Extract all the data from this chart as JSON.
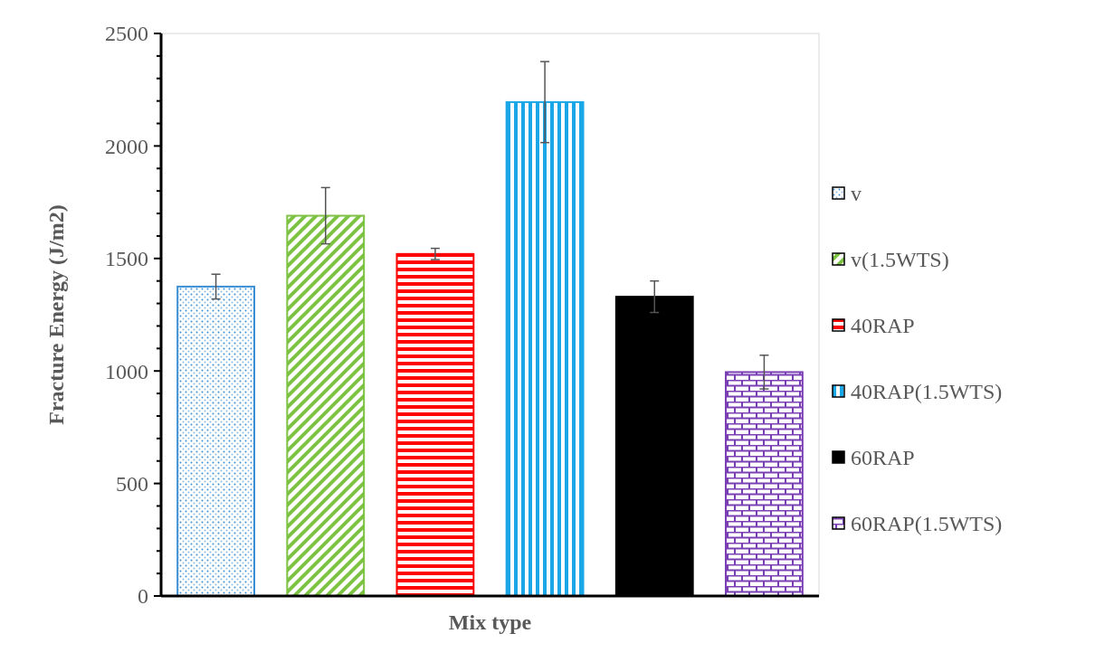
{
  "chart_data": {
    "type": "bar",
    "xlabel": "Mix type",
    "ylabel": "Fracture Energy (J/m2)",
    "categories": [
      null
    ],
    "series": [
      {
        "name": "v",
        "color": "#3b8fd4",
        "values": [
          1375
        ],
        "errors": [
          55
        ]
      },
      {
        "name": "v(1.5WTS)",
        "color": "#7dc242",
        "values": [
          1690
        ],
        "errors": [
          125
        ]
      },
      {
        "name": "40RAP",
        "color": "#ff0000",
        "values": [
          1520
        ],
        "errors": [
          25
        ]
      },
      {
        "name": "40RAP(1.5WTS)",
        "color": "#1aa7e8",
        "values": [
          2195
        ],
        "errors": [
          180
        ]
      },
      {
        "name": "60RAP",
        "color": "#000000",
        "values": [
          1330
        ],
        "errors": [
          70
        ]
      },
      {
        "name": "60RAP(1.5WTS)",
        "color": "#7b3fb5",
        "values": [
          995
        ],
        "errors": [
          75
        ]
      }
    ],
    "ylim": [
      0,
      2500
    ],
    "yticks": [
      0,
      {
        "value": 100,
        "label": null
      },
      {
        "value": 200,
        "label": null
      },
      {
        "value": 300,
        "label": null
      },
      {
        "value": 400,
        "label": null
      },
      500,
      {
        "value": 600,
        "label": null
      },
      {
        "value": 700,
        "label": null
      },
      {
        "value": 800,
        "label": null
      },
      {
        "value": 900,
        "label": null
      },
      1000,
      {
        "value": 1100,
        "label": null
      },
      {
        "value": 1200,
        "label": null
      },
      {
        "value": 1300,
        "label": null
      },
      {
        "value": 1400,
        "label": null
      },
      1500,
      {
        "value": 1600,
        "label": null
      },
      {
        "value": 1700,
        "label": null
      },
      {
        "value": 1800,
        "label": null
      },
      {
        "value": 1900,
        "label": null
      },
      2000,
      {
        "value": 2100,
        "label": null
      },
      {
        "value": 2200,
        "label": null
      },
      {
        "value": 2300,
        "label": null
      },
      {
        "value": 2400,
        "label": null
      },
      2500
    ],
    "legend": "right"
  }
}
